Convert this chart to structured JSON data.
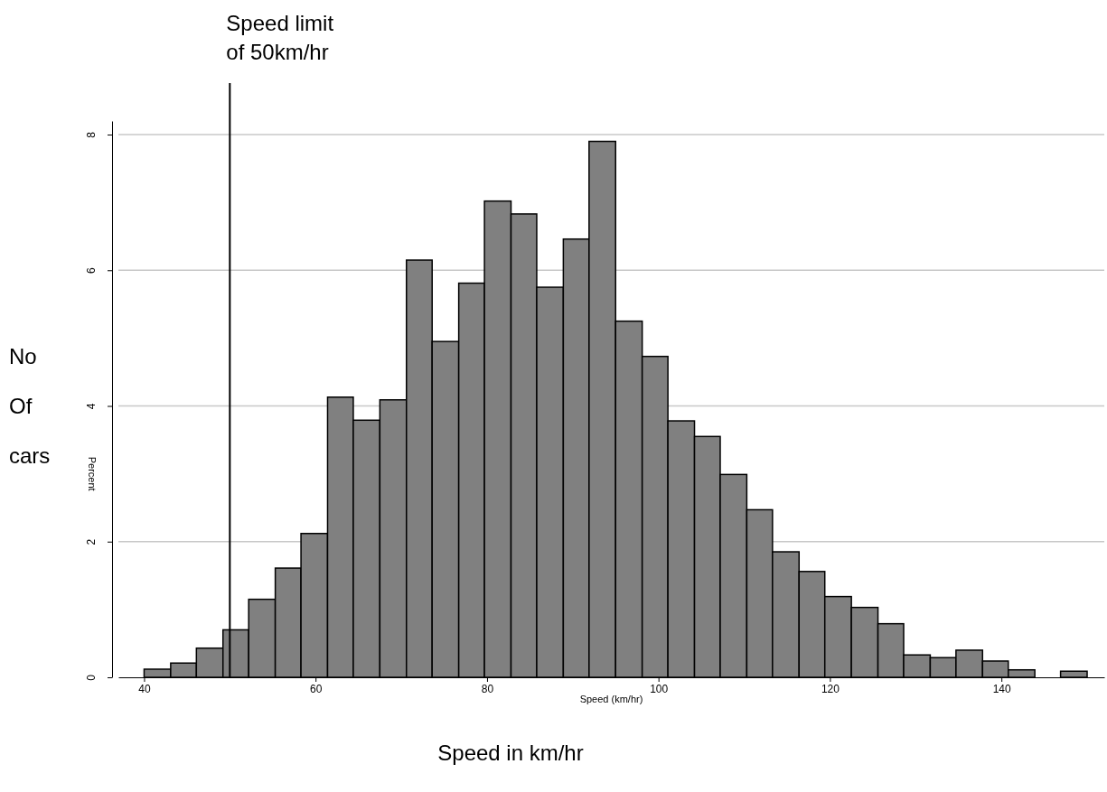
{
  "chart_data": {
    "type": "histogram",
    "xlabel": "Speed (km/hr)",
    "ylabel": "Percent",
    "bins": [
      40,
      43.1,
      46.1,
      49.2,
      52.2,
      55.3,
      58.3,
      61.4,
      64.4,
      67.5,
      70.6,
      73.6,
      76.7,
      79.7,
      82.8,
      85.8,
      88.9,
      91.9,
      95,
      98.1,
      101.1,
      104.2,
      107.2,
      110.3,
      113.3,
      116.4,
      119.4,
      122.5,
      125.6,
      128.6,
      131.7,
      134.7,
      137.8,
      140.8,
      143.9,
      146.9,
      150
    ],
    "values": [
      0.12,
      0.21,
      0.43,
      0.7,
      1.15,
      1.61,
      2.12,
      4.13,
      3.79,
      4.09,
      6.15,
      4.95,
      5.81,
      7.02,
      6.83,
      5.75,
      6.46,
      7.9,
      5.25,
      4.73,
      3.78,
      3.55,
      2.99,
      2.47,
      1.85,
      1.56,
      1.19,
      1.03,
      0.79,
      0.33,
      0.29,
      0.4,
      0.24,
      0.11,
      0,
      0.09
    ],
    "color": "#808080",
    "xlim": [
      37,
      152
    ],
    "xticks": [
      40,
      60,
      80,
      100,
      120,
      140
    ],
    "ylim": [
      0,
      8.2
    ],
    "yticks": [
      0,
      2,
      4,
      6,
      8
    ],
    "grid": "y",
    "ref_lines": [
      {
        "axis": "x",
        "value": 50,
        "label": "Speed limit of 50km/hr",
        "color": "#000000"
      }
    ],
    "annotations": [
      "No Of cars",
      "Speed in km/hr"
    ]
  }
}
